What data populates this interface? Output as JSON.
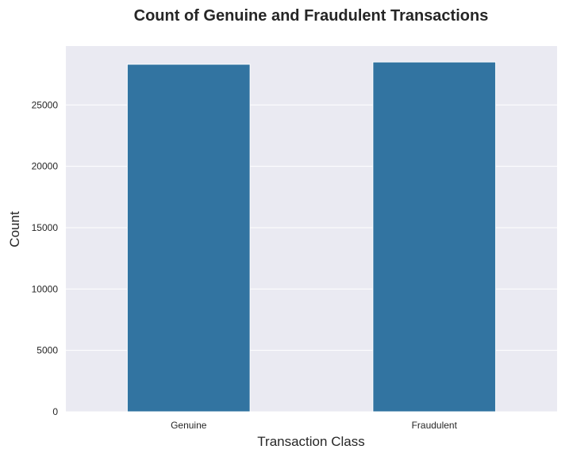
{
  "chart_data": {
    "type": "bar",
    "title": "Count of Genuine and Fraudulent Transactions",
    "xlabel": "Transaction Class",
    "ylabel": "Count",
    "categories": [
      "Genuine",
      "Fraudulent"
    ],
    "values": [
      28315,
      28500
    ],
    "ylim": [
      0,
      29800
    ],
    "yticks": [
      0,
      5000,
      10000,
      15000,
      20000,
      25000
    ],
    "ytick_labels": [
      "0",
      "5000",
      "10000",
      "15000",
      "20000",
      "25000"
    ],
    "grid": true,
    "legend": "none",
    "colors": {
      "bar": "#3274a1",
      "plot_background": "#eaeaf2",
      "grid": "#ffffff",
      "text": "#262626"
    }
  }
}
